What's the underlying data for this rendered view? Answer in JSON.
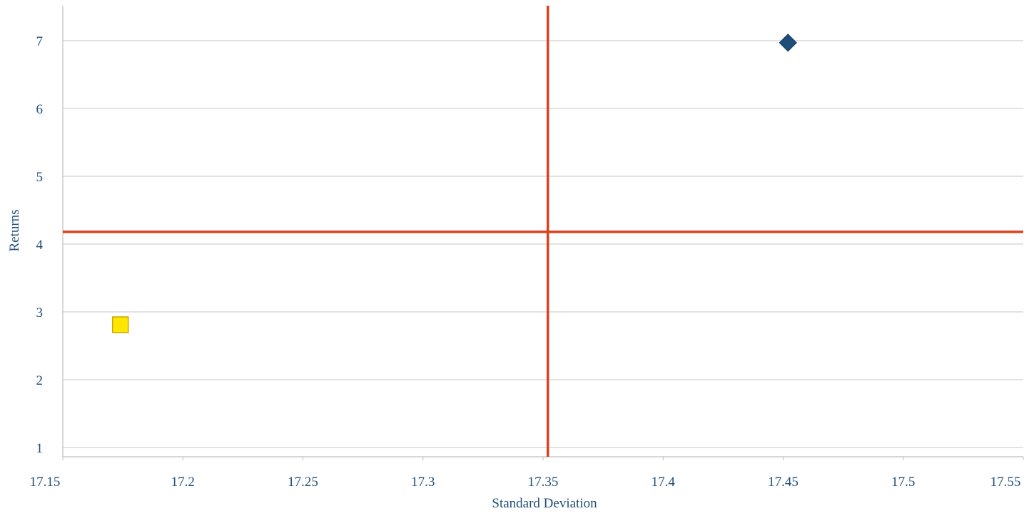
{
  "chart_data": {
    "type": "scatter",
    "title": "",
    "xlabel": "Standard Deviation",
    "ylabel": "Returns",
    "xlim": [
      17.15,
      17.55
    ],
    "ylim": [
      0.85,
      7.5
    ],
    "x_ticks": [
      17.15,
      17.2,
      17.25,
      17.3,
      17.35,
      17.4,
      17.45,
      17.5,
      17.55
    ],
    "x_tick_labels": [
      "17.15",
      "17.2",
      "17.25",
      "17.3",
      "17.35",
      "17.4",
      "17.45",
      "17.5",
      "17.55"
    ],
    "y_ticks": [
      1,
      2,
      3,
      4,
      5,
      6,
      7
    ],
    "y_tick_labels": [
      "1",
      "2",
      "3",
      "4",
      "5",
      "6",
      "7"
    ],
    "grid": {
      "horizontal": true,
      "vertical": false
    },
    "legend": "none",
    "series": [
      {
        "marker": "diamond",
        "color": "#1f4e79",
        "points": [
          {
            "x": 17.452,
            "y": 6.97
          }
        ]
      },
      {
        "marker": "square",
        "color": "#ffe600",
        "stroke": "#c9a800",
        "points": [
          {
            "x": 17.174,
            "y": 2.81
          }
        ]
      }
    ],
    "reference_lines": [
      {
        "orientation": "vertical",
        "value": 17.352,
        "color": "#d9411e"
      },
      {
        "orientation": "horizontal",
        "value": 4.18,
        "color": "#d9411e"
      }
    ],
    "colors": {
      "text": "#1f4e79",
      "grid": "#d0d0d0",
      "axis": "#bfbfbf"
    }
  }
}
